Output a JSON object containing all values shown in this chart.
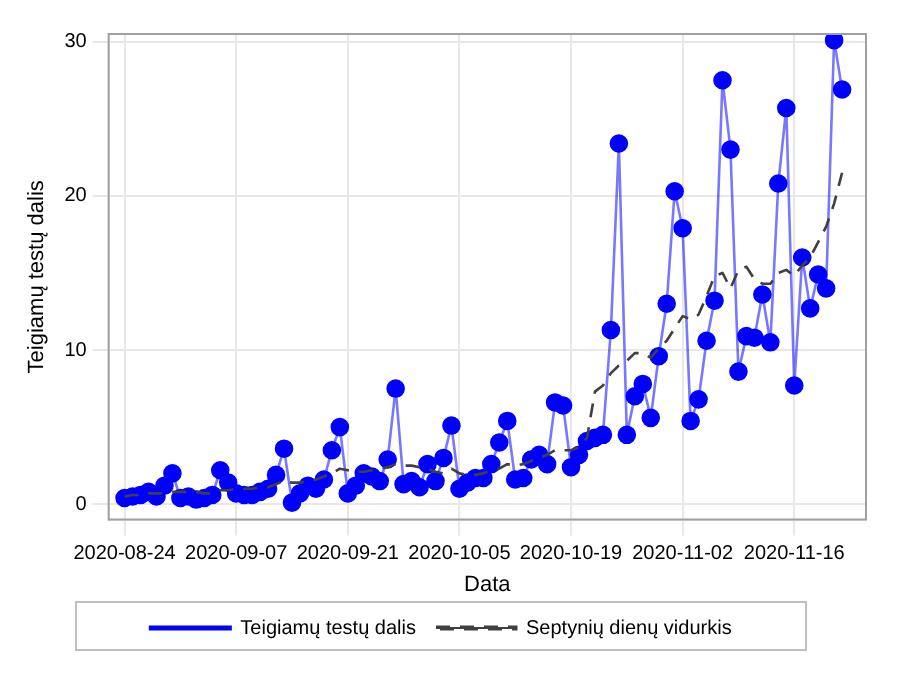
{
  "chart_data": {
    "type": "line",
    "xlabel": "Data",
    "ylabel": "Teigiamų testų dalis",
    "x": [
      "2020-08-24",
      "2020-08-25",
      "2020-08-26",
      "2020-08-27",
      "2020-08-28",
      "2020-08-29",
      "2020-08-30",
      "2020-08-31",
      "2020-09-01",
      "2020-09-02",
      "2020-09-03",
      "2020-09-04",
      "2020-09-05",
      "2020-09-06",
      "2020-09-07",
      "2020-09-08",
      "2020-09-09",
      "2020-09-10",
      "2020-09-11",
      "2020-09-12",
      "2020-09-13",
      "2020-09-14",
      "2020-09-15",
      "2020-09-16",
      "2020-09-17",
      "2020-09-18",
      "2020-09-19",
      "2020-09-20",
      "2020-09-21",
      "2020-09-22",
      "2020-09-23",
      "2020-09-24",
      "2020-09-25",
      "2020-09-26",
      "2020-09-27",
      "2020-09-28",
      "2020-09-29",
      "2020-09-30",
      "2020-10-01",
      "2020-10-02",
      "2020-10-03",
      "2020-10-04",
      "2020-10-05",
      "2020-10-06",
      "2020-10-07",
      "2020-10-08",
      "2020-10-09",
      "2020-10-10",
      "2020-10-11",
      "2020-10-12",
      "2020-10-13",
      "2020-10-14",
      "2020-10-15",
      "2020-10-16",
      "2020-10-17",
      "2020-10-18",
      "2020-10-19",
      "2020-10-20",
      "2020-10-21",
      "2020-10-22",
      "2020-10-23",
      "2020-10-24",
      "2020-10-25",
      "2020-10-26",
      "2020-10-27",
      "2020-10-28",
      "2020-10-29",
      "2020-10-30",
      "2020-10-31",
      "2020-11-01",
      "2020-11-02",
      "2020-11-03",
      "2020-11-04",
      "2020-11-05",
      "2020-11-06",
      "2020-11-07",
      "2020-11-08",
      "2020-11-09",
      "2020-11-10",
      "2020-11-11",
      "2020-11-12",
      "2020-11-13",
      "2020-11-14",
      "2020-11-15",
      "2020-11-16",
      "2020-11-17",
      "2020-11-18",
      "2020-11-19",
      "2020-11-20",
      "2020-11-21",
      "2020-11-22"
    ],
    "series": [
      {
        "name": "Teigiamų testų dalis",
        "color": "#0000ff",
        "marker": "circle",
        "line_style": "solid",
        "values": [
          0.4,
          0.5,
          0.6,
          0.8,
          0.5,
          1.2,
          2.0,
          0.4,
          0.5,
          0.3,
          0.4,
          0.6,
          2.2,
          1.4,
          0.7,
          0.6,
          0.6,
          0.8,
          1.0,
          1.9,
          3.6,
          0.1,
          0.7,
          1.2,
          1.0,
          1.6,
          3.5,
          5.0,
          0.7,
          1.2,
          2.0,
          1.8,
          1.5,
          2.9,
          7.5,
          1.3,
          1.5,
          1.1,
          2.6,
          1.5,
          3.0,
          5.1,
          1.0,
          1.4,
          1.7,
          1.7,
          2.6,
          4.0,
          5.4,
          1.6,
          1.7,
          2.9,
          3.2,
          2.6,
          6.6,
          6.4,
          2.4,
          3.2,
          4.1,
          4.3,
          4.5,
          11.3,
          23.4,
          4.5,
          7.0,
          7.8,
          5.6,
          9.6,
          13.0,
          20.3,
          17.9,
          5.4,
          6.8,
          10.6,
          13.2,
          27.5,
          23.0,
          8.6,
          10.9,
          10.8,
          13.6,
          10.5,
          20.8,
          25.7,
          7.7,
          16.0,
          12.7,
          14.9,
          14.0,
          30.1,
          26.9
        ]
      },
      {
        "name": "Septynių dienų vidurkis",
        "color": "#404040",
        "marker": "none",
        "line_style": "dashed",
        "values": [
          0.5,
          0.6,
          0.6,
          0.7,
          0.7,
          0.7,
          0.8,
          0.8,
          0.8,
          0.8,
          0.7,
          0.7,
          0.9,
          0.9,
          1.0,
          1.0,
          1.0,
          1.1,
          1.1,
          1.3,
          1.5,
          1.4,
          1.4,
          1.5,
          1.6,
          1.8,
          2.0,
          2.3,
          2.2,
          2.1,
          2.1,
          2.2,
          2.3,
          2.4,
          2.6,
          2.5,
          2.5,
          2.4,
          2.3,
          2.1,
          2.0,
          2.3,
          2.0,
          1.9,
          1.9,
          2.0,
          2.2,
          2.3,
          2.6,
          2.5,
          2.6,
          2.8,
          3.0,
          3.2,
          3.5,
          3.5,
          3.5,
          3.7,
          4.3,
          7.3,
          7.7,
          8.5,
          9.0,
          9.3,
          9.8,
          9.8,
          9.5,
          10.1,
          10.6,
          11.4,
          12.2,
          12.0,
          12.3,
          13.5,
          14.8,
          15.0,
          14.0,
          15.2,
          15.4,
          14.6,
          14.3,
          14.3,
          15.0,
          15.2,
          14.8,
          15.5,
          16.0,
          17.0,
          18.0,
          19.5,
          21.5
        ]
      }
    ],
    "xlim": [
      "2020-08-22",
      "2020-11-25"
    ],
    "xticks": [
      "2020-08-24",
      "2020-09-07",
      "2020-09-21",
      "2020-10-05",
      "2020-10-19",
      "2020-11-02",
      "2020-11-16"
    ],
    "ylim": [
      -1,
      30.5
    ],
    "yticks": [
      0,
      10,
      20,
      30
    ],
    "grid": true,
    "legend": "bottom"
  }
}
